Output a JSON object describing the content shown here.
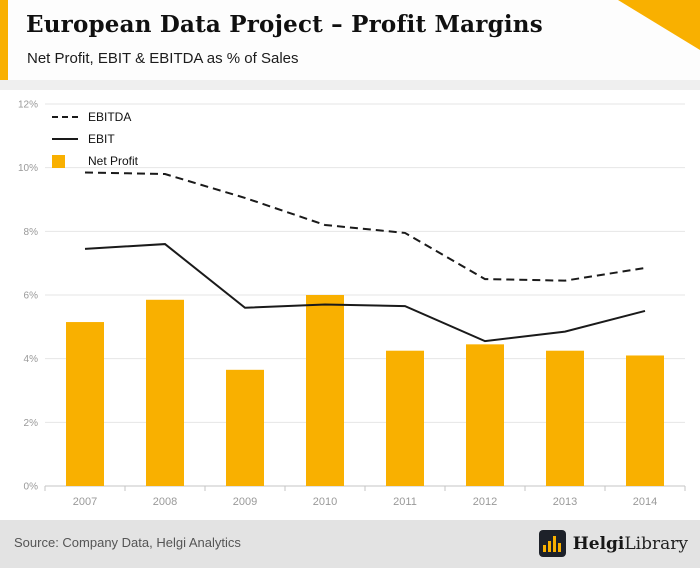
{
  "header": {
    "title": "European Data Project – Profit Margins",
    "subtitle": "Net Profit, EBIT & EBITDA as % of Sales"
  },
  "chart_data": {
    "type": "bar",
    "title": "European Data Project – Profit Margins",
    "subtitle": "Net Profit, EBIT & EBITDA as % of Sales",
    "categories": [
      "2007",
      "2008",
      "2009",
      "2010",
      "2011",
      "2012",
      "2013",
      "2014"
    ],
    "series": [
      {
        "name": "EBITDA",
        "type": "line",
        "style": "dashed",
        "color": "#1a1a1a",
        "values": [
          9.85,
          9.8,
          9.05,
          8.2,
          7.95,
          6.5,
          6.45,
          6.85
        ]
      },
      {
        "name": "EBIT",
        "type": "line",
        "style": "solid",
        "color": "#1a1a1a",
        "values": [
          7.45,
          7.6,
          5.6,
          5.7,
          5.65,
          4.55,
          4.85,
          5.5
        ]
      },
      {
        "name": "Net Profit",
        "type": "bar",
        "color": "#F9B000",
        "values": [
          5.15,
          5.85,
          3.65,
          6.0,
          4.25,
          4.45,
          4.25,
          4.1
        ]
      }
    ],
    "xlabel": "",
    "ylabel": "",
    "ylim": [
      0,
      12
    ],
    "yticks": [
      0,
      2,
      4,
      6,
      8,
      10,
      12
    ],
    "ytick_labels": [
      "0%",
      "2%",
      "4%",
      "6%",
      "8%",
      "10%",
      "12%"
    ],
    "grid": true,
    "legend_position": "top-left"
  },
  "footer": {
    "source": "Source: Company Data, Helgi Analytics",
    "logo_bold": "Helgi",
    "logo_light": "Library"
  },
  "colors": {
    "accent": "#F9B000",
    "line": "#1a1a1a"
  }
}
